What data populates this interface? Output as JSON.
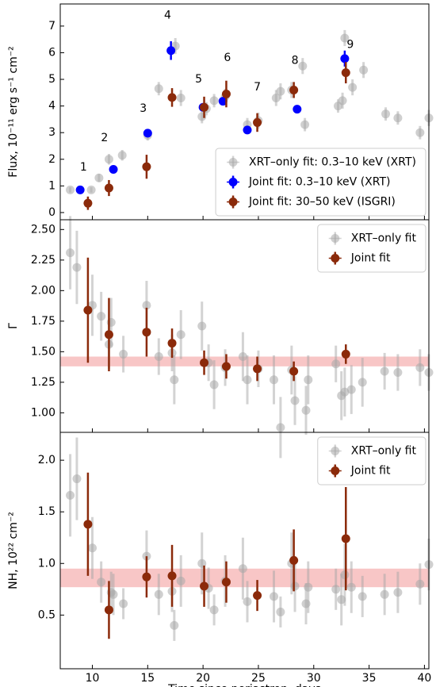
{
  "chart_data": [
    {
      "type": "scatter",
      "ylabel": "Flux, 10⁻¹¹ erg s⁻¹ cm⁻²",
      "xlim": [
        7.1,
        40.4
      ],
      "ylim": [
        -0.27,
        7.83
      ],
      "yticks": [
        0,
        1,
        2,
        3,
        4,
        5,
        6,
        7
      ],
      "legend": "lower right",
      "annotations": [
        {
          "text": "1",
          "x": 9.2,
          "y": 1.7
        },
        {
          "text": "2",
          "x": 11.1,
          "y": 2.8
        },
        {
          "text": "3",
          "x": 14.6,
          "y": 3.9
        },
        {
          "text": "4",
          "x": 16.8,
          "y": 7.4
        },
        {
          "text": "5",
          "x": 19.6,
          "y": 5.0
        },
        {
          "text": "6",
          "x": 22.2,
          "y": 5.8
        },
        {
          "text": "7",
          "x": 24.9,
          "y": 4.7
        },
        {
          "text": "8",
          "x": 28.3,
          "y": 5.7
        },
        {
          "text": "9",
          "x": 33.3,
          "y": 6.3
        }
      ],
      "series": [
        {
          "name": "XRT–only fit: 0.3–10 keV (XRT)",
          "color": "#a8a8a8",
          "x": [
            8.0,
            9.9,
            10.6,
            11.5,
            12.7,
            15.0,
            16.0,
            17.5,
            18.0,
            19.9,
            20.3,
            21.0,
            22.0,
            24.0,
            25.0,
            26.6,
            27.0,
            28.0,
            29.0,
            29.2,
            32.2,
            32.6,
            32.8,
            33.5,
            34.5,
            36.5,
            37.6,
            39.6,
            40.4
          ],
          "values": [
            0.85,
            0.85,
            1.3,
            2.0,
            2.15,
            2.9,
            4.65,
            6.25,
            4.3,
            3.6,
            3.9,
            4.2,
            4.35,
            3.3,
            3.45,
            4.3,
            4.55,
            4.6,
            5.5,
            3.3,
            4.0,
            4.2,
            6.55,
            4.7,
            5.35,
            3.7,
            3.55,
            3.0,
            3.55
          ],
          "errors": [
            0.1,
            0.1,
            0.15,
            0.2,
            0.2,
            0.2,
            0.25,
            0.3,
            0.3,
            0.25,
            0.25,
            0.25,
            0.3,
            0.25,
            0.3,
            0.3,
            0.3,
            0.3,
            0.3,
            0.25,
            0.25,
            0.3,
            0.3,
            0.3,
            0.3,
            0.25,
            0.25,
            0.25,
            0.3
          ]
        },
        {
          "name": "Joint fit: 0.3–10 keV (XRT)",
          "color": "#0000ff",
          "x": [
            8.9,
            11.9,
            15.0,
            17.1,
            20.0,
            21.8,
            24.0,
            28.5,
            32.8
          ],
          "values": [
            0.85,
            1.62,
            2.98,
            6.08,
            3.95,
            4.18,
            3.1,
            3.88,
            5.78
          ],
          "errors": [
            0.1,
            0.15,
            0.15,
            0.35,
            0.15,
            0.15,
            0.12,
            0.15,
            0.3
          ]
        },
        {
          "name": "Joint fit: 30–50 keV (ISGRI)",
          "color": "#8b2a0a",
          "x": [
            9.6,
            11.5,
            14.9,
            17.2,
            20.1,
            22.1,
            24.9,
            28.2,
            32.9
          ],
          "values": [
            0.35,
            0.92,
            1.72,
            4.32,
            3.95,
            4.45,
            3.38,
            4.6,
            5.25
          ],
          "errors": [
            0.25,
            0.3,
            0.45,
            0.35,
            0.4,
            0.5,
            0.35,
            0.3,
            0.4
          ]
        }
      ]
    },
    {
      "type": "scatter",
      "ylabel": "Γ",
      "xlim": [
        7.1,
        40.4
      ],
      "ylim": [
        0.84,
        2.58
      ],
      "yticks": [
        {
          "value": 1.0,
          "label": "1.00"
        },
        1.25,
        {
          "value": 1.5,
          "label": "1.50"
        },
        1.75,
        {
          "value": 2.0,
          "label": "2.00"
        },
        2.25,
        {
          "value": 2.5,
          "label": "2.50"
        }
      ],
      "legend": "upper right",
      "band": [
        1.38,
        1.46
      ],
      "band_color": "#f08080",
      "series": [
        {
          "name": "XRT–only fit",
          "color": "#a8a8a8",
          "x": [
            8.0,
            8.6,
            10.0,
            10.8,
            11.5,
            11.7,
            12.8,
            14.9,
            16.0,
            17.2,
            17.4,
            18.0,
            19.9,
            20.5,
            21.0,
            22.0,
            23.6,
            24.0,
            25.0,
            26.4,
            27.0,
            28.0,
            28.3,
            29.3,
            29.5,
            32.0,
            32.5,
            32.8,
            33.4,
            34.4,
            36.4,
            37.6,
            39.6,
            40.4
          ],
          "values": [
            2.31,
            2.19,
            1.88,
            1.79,
            1.56,
            1.74,
            1.48,
            1.88,
            1.46,
            1.49,
            1.27,
            1.64,
            1.71,
            1.41,
            1.23,
            1.37,
            1.46,
            1.27,
            1.36,
            1.27,
            0.88,
            1.35,
            1.1,
            1.02,
            1.27,
            1.4,
            1.14,
            1.17,
            1.19,
            1.25,
            1.34,
            1.33,
            1.37,
            1.33
          ],
          "errors": [
            0.3,
            0.3,
            0.25,
            0.2,
            0.2,
            0.2,
            0.15,
            0.2,
            0.15,
            0.15,
            0.2,
            0.2,
            0.2,
            0.15,
            0.2,
            0.15,
            0.2,
            0.2,
            0.15,
            0.2,
            0.25,
            0.2,
            0.2,
            0.2,
            0.2,
            0.15,
            0.2,
            0.2,
            0.2,
            0.2,
            0.15,
            0.15,
            0.15,
            0.15
          ]
        },
        {
          "name": "Joint fit",
          "color": "#8b2a0a",
          "x": [
            9.6,
            11.5,
            14.9,
            17.2,
            20.1,
            22.1,
            24.9,
            28.2,
            32.9
          ],
          "values": [
            1.84,
            1.64,
            1.66,
            1.57,
            1.41,
            1.38,
            1.36,
            1.34,
            1.48
          ],
          "errors": [
            0.43,
            0.3,
            0.2,
            0.12,
            0.1,
            0.1,
            0.1,
            0.08,
            0.08
          ]
        }
      ]
    },
    {
      "type": "scatter",
      "ylabel": "NH, 10²² cm⁻²",
      "xlabel": "Time since periastron, days",
      "xlim": [
        7.1,
        40.4
      ],
      "ylim": [
        -0.02,
        2.27
      ],
      "xticks": [
        10,
        15,
        20,
        25,
        30,
        35,
        40
      ],
      "yticks": [
        0.5,
        {
          "value": 1.0,
          "label": "1.0"
        },
        1.5,
        {
          "value": 2.0,
          "label": "2.0"
        }
      ],
      "legend": "upper right",
      "band": [
        0.77,
        0.95
      ],
      "band_color": "#f08080",
      "series": [
        {
          "name": "XRT–only fit",
          "color": "#a8a8a8",
          "x": [
            8.0,
            8.6,
            10.0,
            10.8,
            11.7,
            11.9,
            12.8,
            14.9,
            16.0,
            17.2,
            17.4,
            18.0,
            19.9,
            20.5,
            21.0,
            22.0,
            23.6,
            24.0,
            26.4,
            27.0,
            28.0,
            28.3,
            29.3,
            29.5,
            32.0,
            32.5,
            32.8,
            33.4,
            34.4,
            36.4,
            37.6,
            39.6,
            40.4
          ],
          "values": [
            1.66,
            1.82,
            1.15,
            0.82,
            0.72,
            0.7,
            0.61,
            1.07,
            0.7,
            0.73,
            0.4,
            0.83,
            1.0,
            0.76,
            0.55,
            0.83,
            0.95,
            0.63,
            0.68,
            0.53,
            1.0,
            0.78,
            0.61,
            0.77,
            0.75,
            0.65,
            0.89,
            0.77,
            0.68,
            0.7,
            0.72,
            0.8,
            0.99
          ],
          "errors": [
            0.4,
            0.4,
            0.3,
            0.2,
            0.2,
            0.2,
            0.15,
            0.25,
            0.2,
            0.2,
            0.15,
            0.25,
            0.3,
            0.2,
            0.15,
            0.25,
            0.3,
            0.2,
            0.25,
            0.15,
            0.3,
            0.25,
            0.2,
            0.25,
            0.2,
            0.25,
            0.3,
            0.25,
            0.2,
            0.2,
            0.2,
            0.2,
            0.25
          ]
        },
        {
          "name": "Joint fit",
          "color": "#8b2a0a",
          "x": [
            9.6,
            11.5,
            14.9,
            17.2,
            20.1,
            22.1,
            24.9,
            28.2,
            32.9
          ],
          "values": [
            1.38,
            0.55,
            0.87,
            0.88,
            0.78,
            0.82,
            0.69,
            1.03,
            1.24
          ],
          "errors": [
            0.5,
            0.28,
            0.2,
            0.3,
            0.2,
            0.2,
            0.15,
            0.3,
            0.5
          ]
        }
      ]
    }
  ]
}
